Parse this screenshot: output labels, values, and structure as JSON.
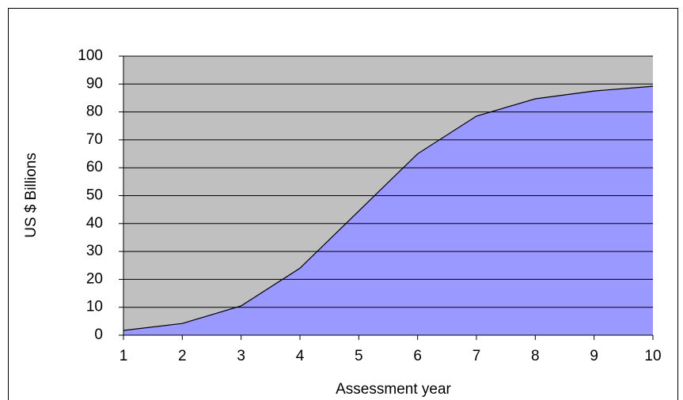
{
  "chart_data": {
    "type": "area",
    "x": [
      1,
      2,
      3,
      4,
      5,
      6,
      7,
      8,
      9,
      10
    ],
    "series": [
      {
        "color": "#9999ff",
        "values": [
          1.7,
          4.2,
          10.5,
          24,
          44.5,
          65,
          78.5,
          84.7,
          87.5,
          89.2
        ]
      }
    ],
    "xlim": [
      1,
      10
    ],
    "xticks": [
      1,
      2,
      3,
      4,
      5,
      6,
      7,
      8,
      9,
      10
    ],
    "ylim": [
      0,
      100
    ],
    "yticks": [
      0,
      10,
      20,
      30,
      40,
      50,
      60,
      70,
      80,
      90,
      100
    ],
    "xlabel": "Assessment year",
    "ylabel": "US $ Billions",
    "grid": true,
    "background": "#c0c0c0"
  }
}
